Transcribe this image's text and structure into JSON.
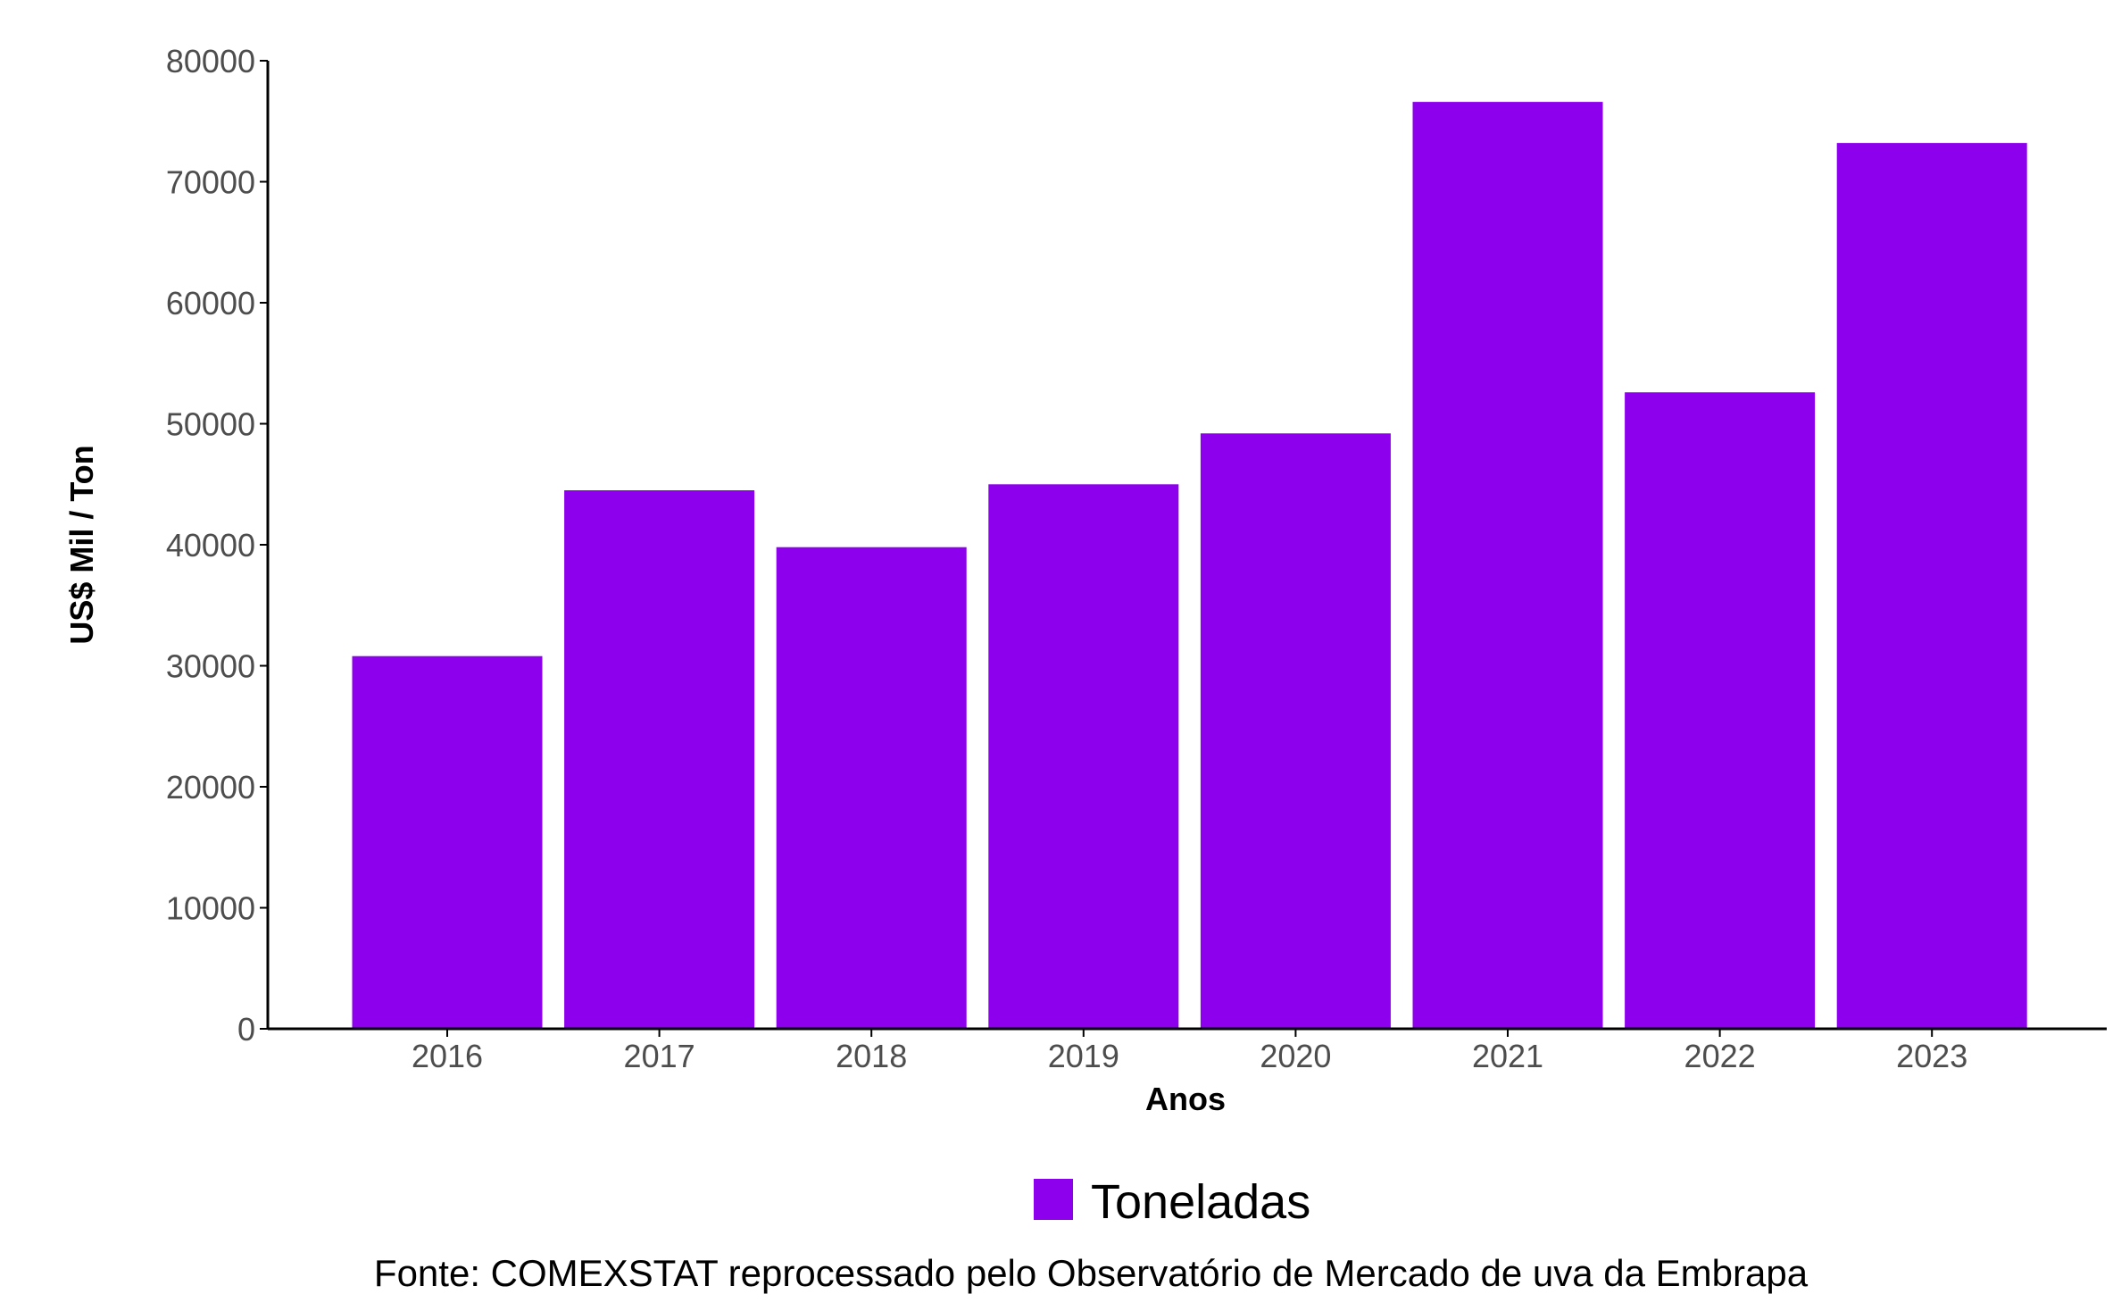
{
  "chart_data": {
    "type": "bar",
    "categories": [
      "2016",
      "2017",
      "2018",
      "2019",
      "2020",
      "2021",
      "2022",
      "2023"
    ],
    "series": [
      {
        "name": "Toneladas",
        "color": "#8c00ed",
        "values": [
          30800,
          44500,
          39800,
          45000,
          49200,
          76600,
          52600,
          73200
        ]
      }
    ],
    "xlabel": "Anos",
    "ylabel": "US$ Mil / Ton",
    "ylim": [
      0,
      80000
    ],
    "yticks": [
      0,
      10000,
      20000,
      30000,
      40000,
      50000,
      60000,
      70000,
      80000
    ],
    "legend_position": "bottom",
    "grid": false
  },
  "caption": "Fonte: COMEXSTAT reprocessado pelo Observatório de Mercado de uva da Embrapa"
}
